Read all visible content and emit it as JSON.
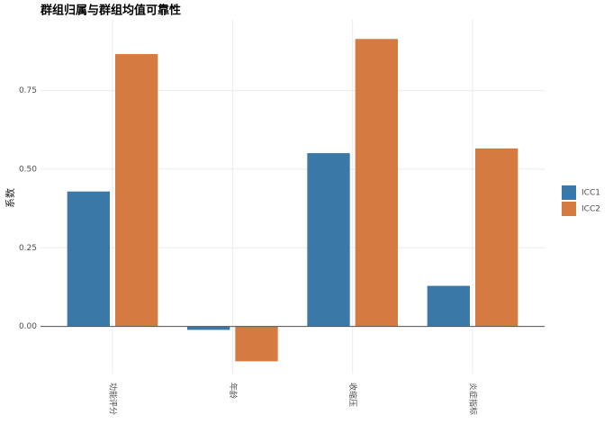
{
  "chart_data": {
    "type": "bar",
    "title": "群组归属与群组均值可靠性",
    "y_label": "系数",
    "categories": [
      "功能评分",
      "年龄",
      "收缩压",
      "炎症指标"
    ],
    "series": [
      {
        "name": "ICC1",
        "color": "#3a78a8",
        "values": [
          0.429,
          -0.011,
          0.551,
          0.129
        ]
      },
      {
        "name": "ICC2",
        "color": "#d57a40",
        "values": [
          0.866,
          -0.111,
          0.914,
          0.566
        ]
      }
    ],
    "ylim": [
      -0.15,
      0.975
    ],
    "yticks": [
      {
        "value": 0,
        "label": "0.00"
      },
      0.25,
      {
        "value": 0.5,
        "label": "0.50"
      },
      0.75
    ],
    "grid": true,
    "legend": "right"
  }
}
